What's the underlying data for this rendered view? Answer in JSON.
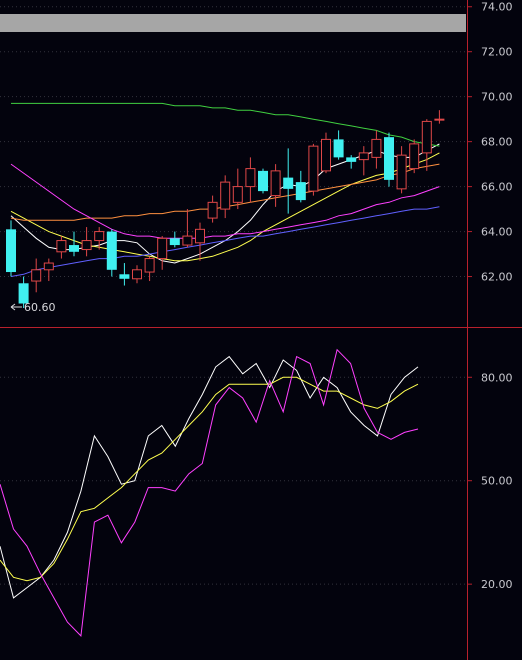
{
  "colors": {
    "background": "#03030d",
    "up": "#e04848",
    "down": "#40f0f0",
    "axis": "#b8202c",
    "header_bar": "#a6a6a6",
    "ma5": "#ffffff",
    "ma10": "#ffff50",
    "ma20": "#ff9040",
    "ma60": "#ff40ff",
    "ma120": "#6060ff",
    "ma250": "#40d040",
    "osc_fast": "#ffffff",
    "osc_slow": "#ffff50",
    "osc_third": "#ff40ff"
  },
  "chart_data": [
    {
      "type": "candlestick",
      "ylim": [
        59.8,
        74.3
      ],
      "y_ticks": [
        "62.00",
        "64.00",
        "66.00",
        "68.00",
        "70.00",
        "72.00",
        "74.00"
      ],
      "annotation": "60.60",
      "candles": [
        {
          "o": 64.1,
          "h": 64.5,
          "l": 62.0,
          "c": 62.2
        },
        {
          "o": 61.7,
          "h": 62.0,
          "l": 60.6,
          "c": 60.8
        },
        {
          "o": 61.8,
          "h": 62.8,
          "l": 61.3,
          "c": 62.3
        },
        {
          "o": 62.3,
          "h": 62.8,
          "l": 61.8,
          "c": 62.6
        },
        {
          "o": 63.1,
          "h": 63.8,
          "l": 62.8,
          "c": 63.6
        },
        {
          "o": 63.4,
          "h": 64.0,
          "l": 62.9,
          "c": 63.1
        },
        {
          "o": 63.2,
          "h": 64.2,
          "l": 62.9,
          "c": 63.6
        },
        {
          "o": 63.6,
          "h": 64.2,
          "l": 63.2,
          "c": 64.0
        },
        {
          "o": 64.0,
          "h": 64.1,
          "l": 62.0,
          "c": 62.3
        },
        {
          "o": 62.1,
          "h": 62.6,
          "l": 61.6,
          "c": 61.9
        },
        {
          "o": 61.9,
          "h": 62.5,
          "l": 61.7,
          "c": 62.3
        },
        {
          "o": 62.2,
          "h": 62.9,
          "l": 61.8,
          "c": 62.8
        },
        {
          "o": 62.8,
          "h": 63.8,
          "l": 62.3,
          "c": 63.7
        },
        {
          "o": 63.7,
          "h": 64.0,
          "l": 63.3,
          "c": 63.4
        },
        {
          "o": 63.4,
          "h": 65.0,
          "l": 63.3,
          "c": 63.8
        },
        {
          "o": 63.5,
          "h": 64.4,
          "l": 62.7,
          "c": 64.1
        },
        {
          "o": 64.6,
          "h": 65.6,
          "l": 64.4,
          "c": 65.3
        },
        {
          "o": 65.0,
          "h": 66.5,
          "l": 64.6,
          "c": 66.2
        },
        {
          "o": 65.3,
          "h": 66.8,
          "l": 65.0,
          "c": 66.0
        },
        {
          "o": 66.0,
          "h": 67.3,
          "l": 65.3,
          "c": 66.8
        },
        {
          "o": 66.7,
          "h": 66.8,
          "l": 65.7,
          "c": 65.8
        },
        {
          "o": 65.6,
          "h": 67.0,
          "l": 65.1,
          "c": 66.7
        },
        {
          "o": 66.4,
          "h": 67.7,
          "l": 64.8,
          "c": 65.9
        },
        {
          "o": 66.2,
          "h": 66.7,
          "l": 65.3,
          "c": 65.4
        },
        {
          "o": 65.8,
          "h": 67.9,
          "l": 65.6,
          "c": 67.8
        },
        {
          "o": 66.7,
          "h": 68.4,
          "l": 66.6,
          "c": 68.1
        },
        {
          "o": 68.1,
          "h": 68.5,
          "l": 67.2,
          "c": 67.3
        },
        {
          "o": 67.3,
          "h": 67.4,
          "l": 66.8,
          "c": 67.1
        },
        {
          "o": 67.2,
          "h": 67.8,
          "l": 66.5,
          "c": 67.5
        },
        {
          "o": 67.3,
          "h": 68.5,
          "l": 66.8,
          "c": 68.1
        },
        {
          "o": 68.2,
          "h": 68.4,
          "l": 66.0,
          "c": 66.3
        },
        {
          "o": 65.9,
          "h": 67.8,
          "l": 65.7,
          "c": 67.4
        },
        {
          "o": 66.8,
          "h": 68.1,
          "l": 66.6,
          "c": 67.9
        },
        {
          "o": 67.5,
          "h": 69.0,
          "l": 66.7,
          "c": 68.9
        },
        {
          "o": 69.0,
          "h": 69.4,
          "l": 68.8,
          "c": 69.0
        }
      ],
      "moving_averages": [
        {
          "key": "ma5",
          "values": [
            64.7,
            64.2,
            63.7,
            63.3,
            63.2,
            63.2,
            63.3,
            63.4,
            63.6,
            63.6,
            63.5,
            63.0,
            62.7,
            62.6,
            62.8,
            63.0,
            63.3,
            63.6,
            64.0,
            64.5,
            65.2,
            65.8,
            66.1,
            66.0,
            66.3,
            66.8,
            67.0,
            67.2,
            67.4,
            67.6,
            67.4,
            67.3,
            67.3,
            67.6,
            67.9
          ]
        },
        {
          "key": "ma10",
          "values": [
            64.9,
            64.6,
            64.3,
            64.0,
            63.8,
            63.6,
            63.4,
            63.3,
            63.2,
            63.1,
            63.0,
            62.9,
            62.8,
            62.7,
            62.7,
            62.8,
            62.9,
            63.1,
            63.3,
            63.6,
            64.0,
            64.3,
            64.6,
            64.9,
            65.2,
            65.5,
            65.8,
            66.1,
            66.3,
            66.5,
            66.6,
            66.8,
            67.0,
            67.2,
            67.5
          ]
        },
        {
          "key": "ma20",
          "values": [
            64.6,
            64.5,
            64.5,
            64.5,
            64.5,
            64.5,
            64.6,
            64.6,
            64.6,
            64.7,
            64.7,
            64.8,
            64.8,
            64.9,
            64.9,
            65.0,
            65.0,
            65.1,
            65.2,
            65.3,
            65.4,
            65.5,
            65.6,
            65.7,
            65.8,
            65.9,
            66.0,
            66.1,
            66.2,
            66.3,
            66.5,
            66.6,
            66.8,
            66.9,
            67.0
          ]
        },
        {
          "key": "ma60",
          "values": [
            67.0,
            66.6,
            66.2,
            65.8,
            65.4,
            65.0,
            64.7,
            64.4,
            64.1,
            63.9,
            63.8,
            63.8,
            63.7,
            63.7,
            63.7,
            63.7,
            63.8,
            63.8,
            63.9,
            63.9,
            64.0,
            64.1,
            64.2,
            64.3,
            64.4,
            64.5,
            64.7,
            64.8,
            65.0,
            65.2,
            65.3,
            65.5,
            65.6,
            65.8,
            66.0
          ]
        },
        {
          "key": "ma120",
          "values": [
            62.0,
            62.1,
            62.3,
            62.4,
            62.5,
            62.6,
            62.7,
            62.8,
            62.8,
            62.9,
            62.9,
            63.0,
            63.1,
            63.2,
            63.3,
            63.4,
            63.5,
            63.6,
            63.7,
            63.8,
            63.8,
            63.9,
            64.0,
            64.1,
            64.2,
            64.3,
            64.4,
            64.5,
            64.6,
            64.7,
            64.8,
            64.9,
            65.0,
            65.0,
            65.1
          ]
        },
        {
          "key": "ma250",
          "values": [
            69.7,
            69.7,
            69.7,
            69.7,
            69.7,
            69.7,
            69.7,
            69.7,
            69.7,
            69.7,
            69.7,
            69.7,
            69.7,
            69.6,
            69.6,
            69.6,
            69.5,
            69.5,
            69.4,
            69.4,
            69.3,
            69.2,
            69.2,
            69.1,
            69.0,
            68.9,
            68.8,
            68.7,
            68.6,
            68.5,
            68.3,
            68.2,
            68.0,
            67.9,
            67.8
          ]
        }
      ]
    },
    {
      "type": "line",
      "ylim": [
        -2,
        94
      ],
      "y_ticks": [
        "20.00",
        "50.00",
        "80.00"
      ],
      "series": [
        {
          "key": "osc_fast",
          "values": [
            31,
            16,
            19,
            22,
            27,
            35,
            47,
            63,
            57,
            49,
            50,
            63,
            66,
            60,
            68,
            75,
            83,
            86,
            81,
            84,
            77,
            85,
            82,
            74,
            80,
            77,
            70,
            66,
            63,
            75,
            80,
            83
          ]
        },
        {
          "key": "osc_slow",
          "values": [
            27,
            22,
            21,
            22,
            26,
            33,
            41,
            42,
            45,
            48,
            52,
            56,
            58,
            62,
            66,
            70,
            75,
            78,
            78,
            78,
            78,
            80,
            80,
            78,
            76,
            76,
            74,
            72,
            71,
            73,
            76,
            78
          ]
        },
        {
          "key": "osc_third",
          "values": [
            49,
            36,
            31,
            23,
            16,
            9,
            5,
            38,
            40,
            32,
            38,
            48,
            48,
            47,
            52,
            55,
            72,
            77,
            74,
            67,
            79,
            70,
            86,
            84,
            72,
            88,
            84,
            71,
            64,
            62,
            64,
            65
          ]
        }
      ]
    }
  ]
}
